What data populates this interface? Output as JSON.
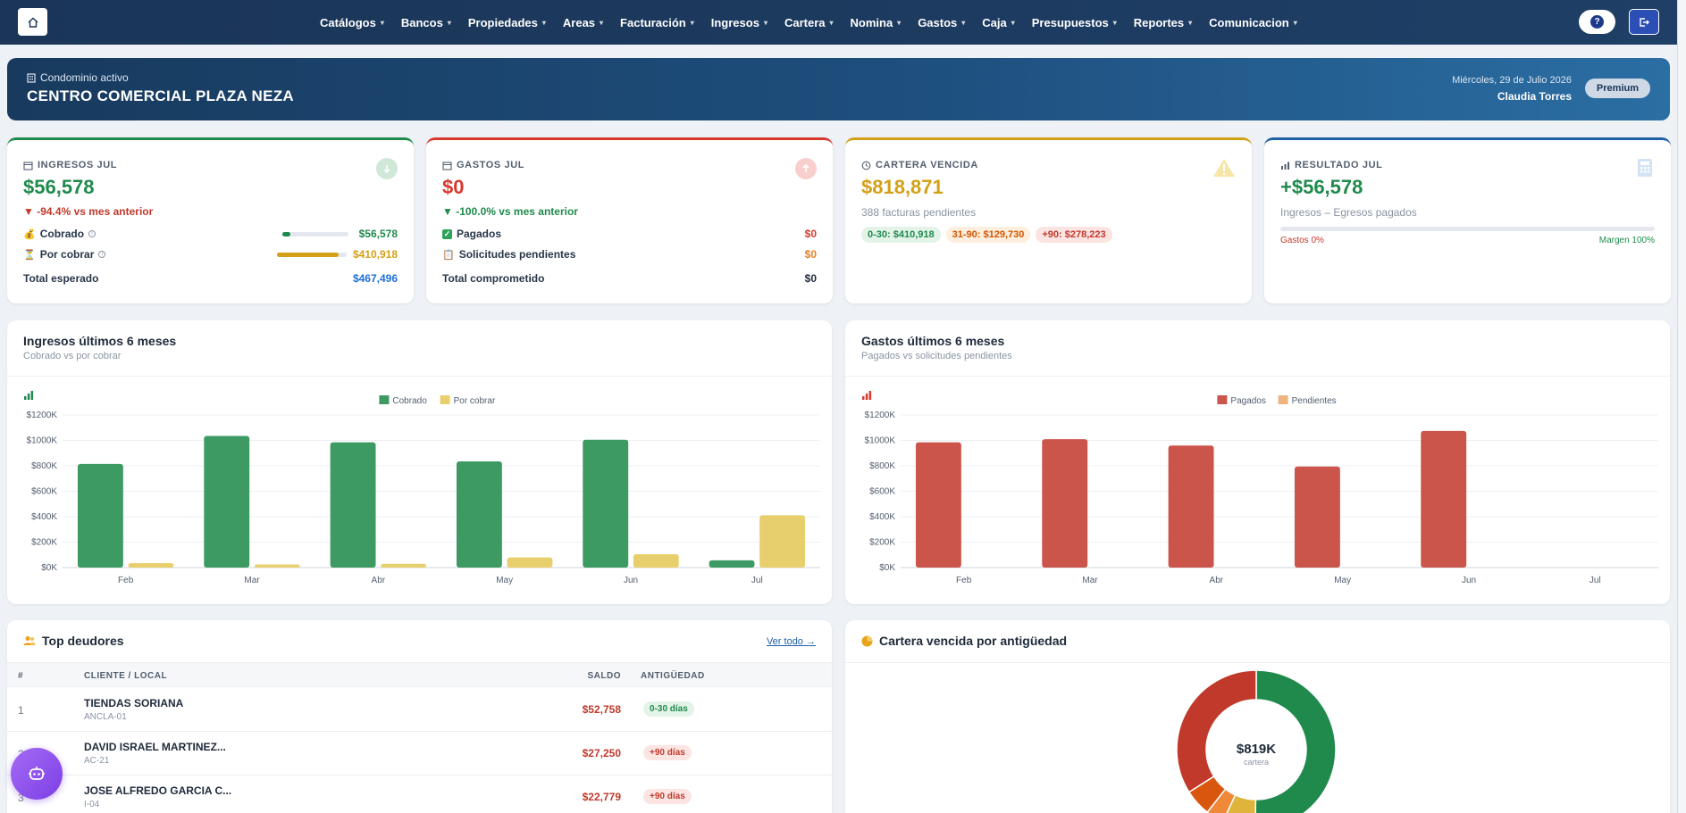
{
  "nav": {
    "items": [
      "Catálogos",
      "Bancos",
      "Propiedades",
      "Areas",
      "Facturación",
      "Ingresos",
      "Cartera",
      "Nomina",
      "Gastos",
      "Caja",
      "Presupuestos",
      "Reportes",
      "Comunicacion"
    ],
    "help_label": "?"
  },
  "banner": {
    "label": "Condominio activo",
    "name": "CENTRO COMERCIAL PLAZA NEZA",
    "date": "Miércoles, 29 de Julio 2026",
    "user": "Claudia Torres",
    "plan": "Premium"
  },
  "kpi": {
    "ingresos": {
      "title": "INGRESOS JUL",
      "value": "$56,578",
      "change": "▼ -94.4% vs mes anterior",
      "cobrado_label": "Cobrado",
      "cobrado_value": "$56,578",
      "cobrado_fraction": 0.12,
      "porcobrar_label": "Por cobrar",
      "porcobrar_value": "$410,918",
      "porcobrar_fraction": 0.88,
      "total_label": "Total esperado",
      "total_value": "$467,496"
    },
    "gastos": {
      "title": "GASTOS JUL",
      "value": "$0",
      "change": "▼ -100.0% vs mes anterior",
      "pagados_label": "Pagados",
      "pagados_value": "$0",
      "solicitudes_label": "Solicitudes pendientes",
      "solicitudes_value": "$0",
      "total_label": "Total comprometido",
      "total_value": "$0"
    },
    "cartera": {
      "title": "CARTERA VENCIDA",
      "value": "$818,871",
      "sub": "388 facturas pendientes",
      "pills": [
        "0-30: $410,918",
        "31-90: $129,730",
        "+90: $278,223"
      ]
    },
    "resultado": {
      "title": "RESULTADO JUL",
      "value": "+$56,578",
      "sub": "Ingresos – Egresos pagados",
      "gastos_pct": "Gastos 0%",
      "margen_pct": "Margen 100%"
    }
  },
  "charts_text": {
    "ingresos_title": "Ingresos últimos 6 meses",
    "ingresos_sub": "Cobrado vs por cobrar",
    "gastos_title": "Gastos últimos 6 meses",
    "gastos_sub": "Pagados vs solicitudes pendientes"
  },
  "chart_data": [
    {
      "type": "bar",
      "title": "Ingresos últimos 6 meses",
      "categories": [
        "Feb",
        "Mar",
        "Abr",
        "May",
        "Jun",
        "Jul"
      ],
      "series": [
        {
          "name": "Cobrado",
          "color": "#3d9a62",
          "values": [
            815000,
            1035000,
            985000,
            835000,
            1005000,
            57000
          ]
        },
        {
          "name": "Por cobrar",
          "color": "#e8cf6d",
          "values": [
            35000,
            25000,
            30000,
            80000,
            105000,
            411000
          ]
        }
      ],
      "ylim": [
        0,
        1200000
      ],
      "yticks": [
        "$0K",
        "$200K",
        "$400K",
        "$600K",
        "$800K",
        "$1000K",
        "$1200K"
      ],
      "legend": "top-center",
      "grid": true
    },
    {
      "type": "bar",
      "title": "Gastos últimos 6 meses",
      "categories": [
        "Feb",
        "Mar",
        "Abr",
        "May",
        "Jun",
        "Jul"
      ],
      "series": [
        {
          "name": "Pagados",
          "color": "#cb554b",
          "values": [
            985000,
            1010000,
            960000,
            795000,
            1075000,
            0
          ]
        },
        {
          "name": "Pendientes",
          "color": "#f0b37e",
          "values": [
            0,
            0,
            0,
            0,
            0,
            0
          ]
        }
      ],
      "ylim": [
        0,
        1200000
      ],
      "yticks": [
        "$0K",
        "$200K",
        "$400K",
        "$600K",
        "$800K",
        "$1000K",
        "$1200K"
      ],
      "legend": "top-center",
      "grid": true
    },
    {
      "type": "pie",
      "title": "Cartera vencida por antigüedad",
      "center_value": "$819K",
      "center_label": "cartera",
      "slices": [
        {
          "value": 410918,
          "color": "#1f8a4c"
        },
        {
          "value": 55000,
          "color": "#e0b43a"
        },
        {
          "value": 30000,
          "color": "#f0883a"
        },
        {
          "value": 44730,
          "color": "#d9560f"
        },
        {
          "value": 278223,
          "color": "#c0392b"
        }
      ]
    }
  ],
  "deudores": {
    "title": "Top deudores",
    "ver_todo": "Ver todo →",
    "headers": [
      "#",
      "CLIENTE / LOCAL",
      "SALDO",
      "ANTIGÜEDAD"
    ],
    "rows": [
      {
        "n": "1",
        "name": "TIENDAS SORIANA",
        "local": "ANCLA-01",
        "saldo": "$52,758",
        "age": "0-30 días"
      },
      {
        "n": "2",
        "name": "DAVID ISRAEL MARTINEZ...",
        "local": "AC-21",
        "saldo": "$27,250",
        "age": "+90 días"
      },
      {
        "n": "3",
        "name": "JOSE ALFREDO GARCIA C...",
        "local": "I-04",
        "saldo": "$22,779",
        "age": "+90 días"
      }
    ]
  },
  "cartera_antiguedad_title": "Cartera vencida por antigüedad",
  "colors": {
    "green": "#1f8a4c",
    "red": "#c0392b",
    "amber": "#d4a017",
    "blue": "#1e5fa8"
  }
}
